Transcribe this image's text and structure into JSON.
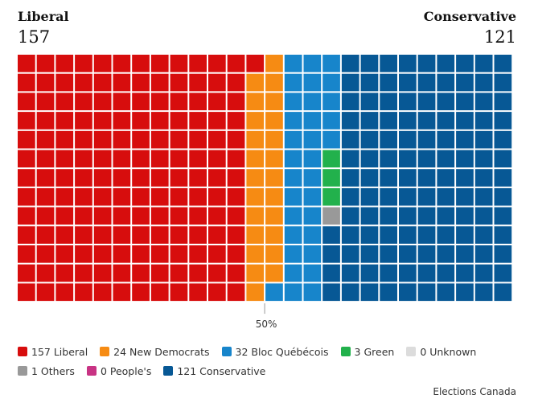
{
  "header": {
    "left": {
      "name": "Liberal",
      "seats": "157"
    },
    "right": {
      "name": "Conservative",
      "seats": "121"
    }
  },
  "chart_data": {
    "type": "waffle",
    "total_seats": 338,
    "rows": 13,
    "columns": 26,
    "fill_order": "column-major, top to bottom then left to right",
    "grid_style": "white gridlines",
    "midpoint_marker": "50%",
    "legend_placement": "bottom",
    "series": [
      {
        "name": "Liberal",
        "value": 157,
        "label": "157 Liberal",
        "color": "#d70d0d"
      },
      {
        "name": "New Democrats",
        "value": 24,
        "label": "24 New Democrats",
        "color": "#f68b13"
      },
      {
        "name": "Bloc Québécois",
        "value": 32,
        "label": "32 Bloc Québécois",
        "color": "#1785cb"
      },
      {
        "name": "Green",
        "value": 3,
        "label": "3 Green",
        "color": "#22b14c"
      },
      {
        "name": "Unknown",
        "value": 0,
        "label": "0 Unknown",
        "color": "#dcdcdc"
      },
      {
        "name": "Others",
        "value": 1,
        "label": "1 Others",
        "color": "#999999"
      },
      {
        "name": "People's",
        "value": 0,
        "label": "0 People's",
        "color": "#c83384"
      },
      {
        "name": "Conservative",
        "value": 121,
        "label": "121 Conservative",
        "color": "#075895"
      }
    ],
    "source": "Elections Canada"
  }
}
